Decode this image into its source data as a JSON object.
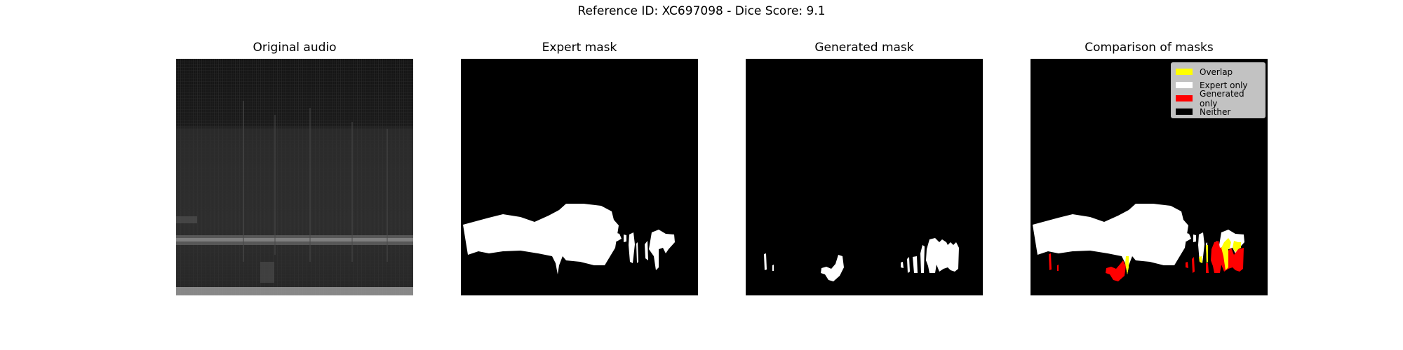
{
  "figure": {
    "suptitle": "Reference ID: XC697098 - Dice Score: 9.1"
  },
  "panels": {
    "original": {
      "title": "Original audio"
    },
    "expert": {
      "title": "Expert mask"
    },
    "generated": {
      "title": "Generated mask"
    },
    "comparison": {
      "title": "Comparison of masks"
    }
  },
  "legend": {
    "items": [
      {
        "label": "Overlap",
        "color": "#ffff00"
      },
      {
        "label": "Expert only",
        "color": "#ffffff"
      },
      {
        "label": "Generated only",
        "color": "#ff0000"
      },
      {
        "label": "Neither",
        "color": "#000000"
      }
    ]
  },
  "colors": {
    "background": "#000000",
    "mask": "#ffffff",
    "overlap": "#ffff00",
    "generated_only": "#ff0000"
  }
}
